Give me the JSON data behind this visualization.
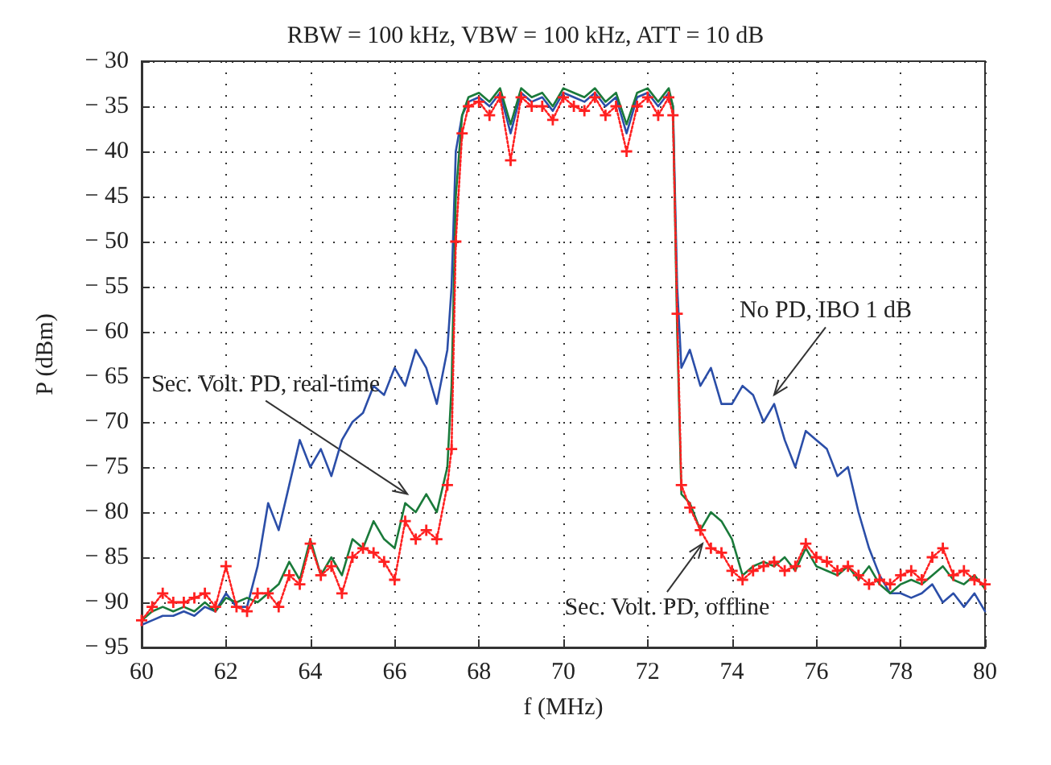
{
  "chart_data": {
    "type": "line",
    "title": "RBW = 100 kHz, VBW = 100 kHz, ATT = 10 dB",
    "xlabel": "f (MHz)",
    "ylabel": "P (dBm)",
    "x": [
      60,
      60.25,
      60.5,
      60.75,
      61,
      61.25,
      61.5,
      61.75,
      62,
      62.25,
      62.5,
      62.75,
      63,
      63.25,
      63.5,
      63.75,
      64,
      64.25,
      64.5,
      64.75,
      65,
      65.25,
      65.5,
      65.75,
      66,
      66.25,
      66.5,
      66.75,
      67,
      67.25,
      67.35,
      67.45,
      67.6,
      67.75,
      68,
      68.25,
      68.5,
      68.75,
      69,
      69.25,
      69.5,
      69.75,
      70,
      70.25,
      70.5,
      70.75,
      71,
      71.25,
      71.5,
      71.75,
      72,
      72.25,
      72.5,
      72.6,
      72.7,
      72.8,
      73,
      73.25,
      73.5,
      73.75,
      74,
      74.25,
      74.5,
      74.75,
      75,
      75.25,
      75.5,
      75.75,
      76,
      76.25,
      76.5,
      76.75,
      77,
      77.25,
      77.5,
      77.75,
      78,
      78.25,
      78.5,
      78.75,
      79,
      79.25,
      79.5,
      79.75,
      80
    ],
    "series": [
      {
        "color": "#2b4ea8",
        "marker": "none",
        "line_style": "solid",
        "values": [
          -92.5,
          -92,
          -91.5,
          -91.5,
          -91,
          -91.5,
          -90.5,
          -91,
          -89,
          -90.5,
          -90.5,
          -86,
          -79,
          -82,
          -77,
          -72,
          -75,
          -73,
          -76,
          -72,
          -70,
          -69,
          -66,
          -67,
          -64,
          -66,
          -62,
          -64,
          -68,
          -62,
          -55,
          -40,
          -36,
          -34.5,
          -34,
          -35,
          -33.5,
          -38,
          -33.5,
          -34.5,
          -34,
          -35.5,
          -33.5,
          -34,
          -34.5,
          -33.5,
          -35,
          -34,
          -38,
          -34,
          -33.5,
          -35,
          -33.5,
          -35,
          -55,
          -64,
          -62,
          -66,
          -64,
          -68,
          -68,
          -66,
          -67,
          -70,
          -68,
          -72,
          -75,
          -71,
          -72,
          -73,
          -76,
          -75,
          -80,
          -84,
          -87,
          -89,
          -89,
          -89.5,
          -89,
          -88,
          -90,
          -89,
          -90.5,
          -89,
          -91
        ]
      },
      {
        "color": "#1a7a3a",
        "marker": "none",
        "line_style": "solid",
        "values": [
          -92,
          -91,
          -90.5,
          -91,
          -90.5,
          -91,
          -90,
          -91,
          -89.5,
          -90,
          -89.5,
          -90,
          -89,
          -88,
          -85.5,
          -87.5,
          -83,
          -87,
          -85,
          -87,
          -83,
          -84,
          -81,
          -83,
          -84,
          -79,
          -80,
          -78,
          -80,
          -75,
          -66,
          -45,
          -36,
          -34,
          -33.5,
          -34.5,
          -33,
          -37,
          -33,
          -34,
          -33.5,
          -35,
          -33,
          -33.5,
          -34,
          -33,
          -34.5,
          -33.5,
          -37,
          -33.5,
          -33,
          -34.5,
          -33,
          -35,
          -60,
          -78,
          -79,
          -82,
          -80,
          -81,
          -83,
          -87,
          -86,
          -85.5,
          -86,
          -85,
          -86.5,
          -84,
          -86,
          -86.5,
          -87,
          -86,
          -87.5,
          -86,
          -88,
          -89,
          -88,
          -87.5,
          -88,
          -87,
          -86,
          -87.5,
          -88,
          -87,
          -88.5
        ]
      },
      {
        "color": "#ff2020",
        "marker": "cross",
        "line_style": "dotted",
        "values": [
          -92,
          -90.5,
          -89,
          -90,
          -90,
          -89.5,
          -89,
          -90.5,
          -86,
          -90.5,
          -91,
          -89,
          -89,
          -90.5,
          -87,
          -88,
          -83.5,
          -87,
          -86,
          -89,
          -85,
          -84,
          -84.5,
          -85.5,
          -87.5,
          -81,
          -83,
          -82,
          -83,
          -77,
          -73,
          -50,
          -38,
          -35,
          -34.5,
          -36,
          -34,
          -41,
          -34,
          -35,
          -35,
          -36.5,
          -34,
          -35,
          -35.5,
          -34,
          -36,
          -35,
          -40,
          -35,
          -34,
          -36,
          -34,
          -36,
          -58,
          -77,
          -79.5,
          -82,
          -84,
          -84.5,
          -86.5,
          -87.5,
          -86.5,
          -86,
          -85.5,
          -86.5,
          -86,
          -83.5,
          -85,
          -85.5,
          -86.5,
          -86,
          -87,
          -88,
          -87.5,
          -88,
          -87,
          -86.5,
          -87.5,
          -85,
          -84,
          -87,
          -86.5,
          -87.5,
          -88
        ]
      }
    ],
    "annotations": [
      {
        "text": "Sec. Volt. PD, real-time",
        "x": 66.3,
        "y": -78
      },
      {
        "text": "No PD, IBO 1 dB",
        "x": 75,
        "y": -67
      },
      {
        "text": "Sec. Volt. PD, offline",
        "x": 73.3,
        "y": -83.5
      }
    ],
    "xlim": [
      60,
      80
    ],
    "xticks": [
      60,
      62,
      64,
      66,
      68,
      70,
      72,
      74,
      76,
      78,
      80
    ],
    "ylim": [
      -95,
      -30
    ],
    "yticks": [
      -95,
      -90,
      -85,
      -80,
      -75,
      -70,
      -65,
      -60,
      -55,
      -50,
      -45,
      -40,
      -35,
      -30
    ],
    "grid": true
  }
}
